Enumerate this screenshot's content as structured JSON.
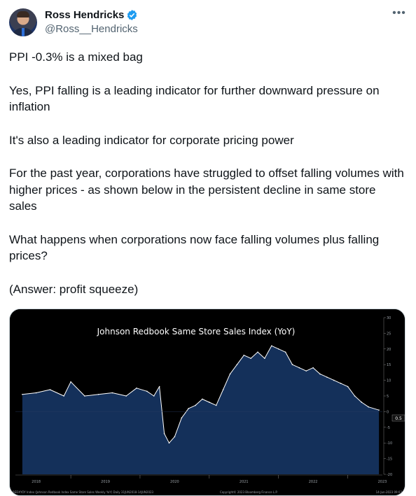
{
  "author": {
    "name": "Ross Hendricks",
    "handle": "@Ross__Hendricks",
    "verified_color": "#1d9bf0"
  },
  "more_icon": "more-horizontal-icon",
  "paragraphs": [
    "PPI -0.3% is a mixed bag",
    "Yes, PPI falling is a leading indicator for further downward pressure on inflation",
    "It's also a leading indicator for corporate pricing power",
    "For the past year, corporations have struggled to offset falling volumes with higher prices - as shown below in the persistent decline in same store sales",
    "What happens when corporations now face falling volumes plus falling prices?",
    "(Answer: profit squeeze)"
  ],
  "chart_data": {
    "type": "area",
    "title": "Johnson Redbook Same Store Sales Index (YoY)",
    "y_ticks": [
      "30",
      "25",
      "20",
      "15",
      "10",
      "5",
      "0",
      "-5",
      "-10",
      "-15",
      "-20"
    ],
    "last_value_label": "0.5",
    "year_labels": [
      "2018",
      "2019",
      "2020",
      "2021",
      "2022",
      "2023"
    ],
    "footer_left": "REDXYOY Index (Johnson Redbook Index Same Store Sales Weekly YoY)  Daily 31JUN2018-14JUN2023",
    "footer_center": "Copyright© 2023 Bloomberg Finance L.P.",
    "footer_right": "14-Jun-2023 09:03",
    "ylim": [
      -20,
      30
    ],
    "x": [
      2018.3,
      2018.5,
      2018.7,
      2018.9,
      2019.0,
      2019.2,
      2019.4,
      2019.6,
      2019.8,
      2019.95,
      2020.1,
      2020.2,
      2020.28,
      2020.35,
      2020.42,
      2020.5,
      2020.6,
      2020.7,
      2020.8,
      2020.9,
      2021.0,
      2021.1,
      2021.2,
      2021.3,
      2021.4,
      2021.5,
      2021.6,
      2021.7,
      2021.8,
      2021.9,
      2022.0,
      2022.1,
      2022.2,
      2022.3,
      2022.4,
      2022.5,
      2022.6,
      2022.7,
      2022.8,
      2022.9,
      2023.0,
      2023.1,
      2023.2,
      2023.3,
      2023.45
    ],
    "values": [
      5.5,
      6,
      7,
      5,
      9.5,
      5,
      5.5,
      6,
      5,
      7.5,
      6.5,
      5,
      8,
      -7,
      -10,
      -8,
      -2,
      1,
      2,
      4,
      3,
      2,
      7,
      12,
      15,
      18,
      17,
      19,
      17,
      21,
      20,
      19,
      15,
      14,
      13,
      14,
      12,
      11,
      10,
      9,
      8,
      5,
      3,
      1.5,
      0.5
    ],
    "series": [
      {
        "name": "Johnson Redbook Same Store Sales Index (YoY)",
        "color": "#ffffff",
        "fill": "#14305a"
      }
    ]
  }
}
